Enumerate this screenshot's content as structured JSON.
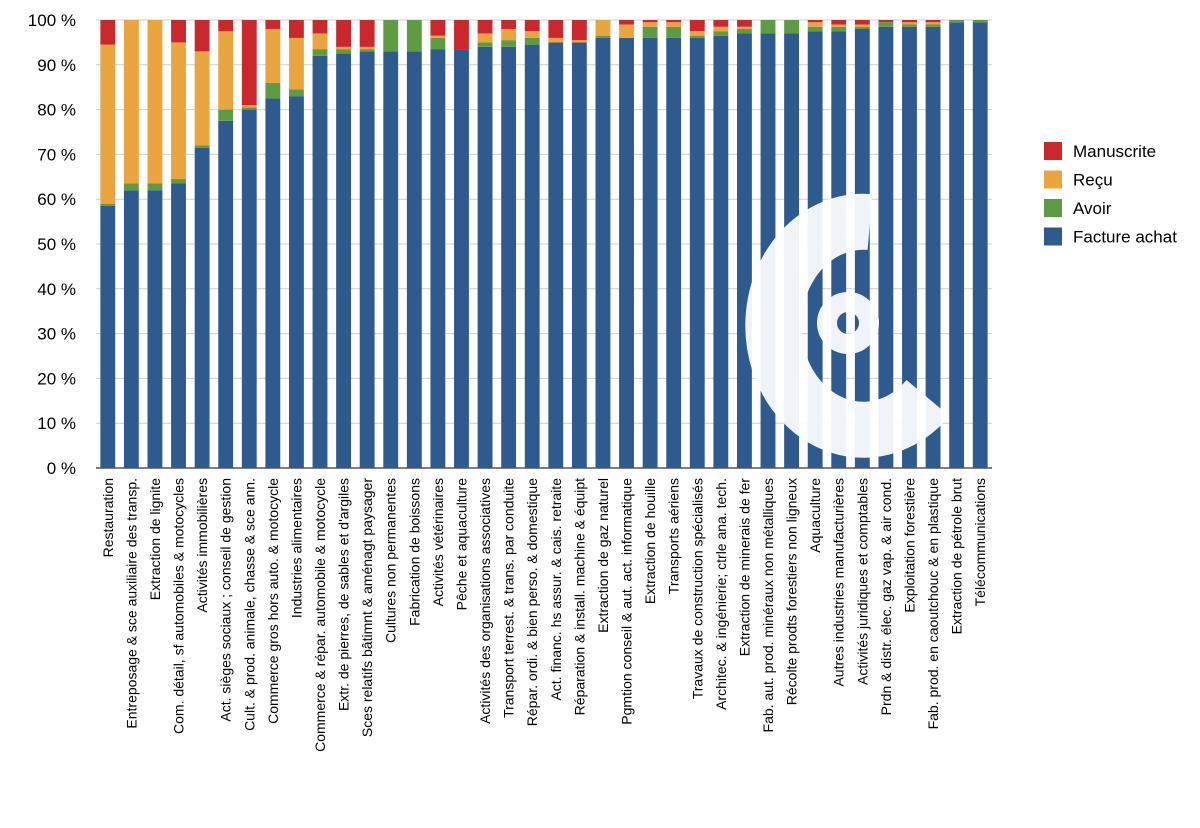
{
  "chart_data": {
    "type": "bar",
    "stacked": true,
    "ylim": [
      0,
      100
    ],
    "y_ticks": [
      "0 %",
      "10 %",
      "20 %",
      "30 %",
      "40 %",
      "50 %",
      "60 %",
      "70 %",
      "80 %",
      "90 %",
      "100 %"
    ],
    "grid": true,
    "legend_position": "right",
    "watermark_logo": "C",
    "categories": [
      "Restauration",
      "Entreposage & sce auxiliaire des transp.",
      "Extraction de lignite",
      "Com. détail, sf automobiles & motocycles",
      "Activités immobilières",
      "Act. sièges sociaux ; conseil de gestion",
      "Cult. & prod. animale, chasse & sce ann.",
      "Commerce gros hors auto. & motocycle",
      "Industries alimentaires",
      "Commerce & répar. automobile & motocycle",
      "Extr. de pierres, de sables et d'argiles",
      "Sces relatifs bâtimnt & aménagt paysager",
      "Cultures non permanentes",
      "Fabrication de boissons",
      "Activités vétérinaires",
      "Pêche et aquaculture",
      "Activités des organisations associatives",
      "Transport terrest. & trans. par conduite",
      "Répar. ordi. & bien perso. & domestique",
      "Act. financ. hs assur. & cais. retraite",
      "Réparation & install. machine & équipt",
      "Extraction de gaz naturel",
      "Pgmtion conseil & aut. act. informatique",
      "Extraction de houille",
      "Transports aériens",
      "Travaux de construction spécialisés",
      "Architec. & ingénierie; ctrle ana. tech.",
      "Extraction de minerais de fer",
      "Fab. aut. prod. minéraux non métalliques",
      "Récolte prodts forestiers non ligneux",
      "Aquaculture",
      "Autres industries manufacturières",
      "Activités juridiques et comptables",
      "Prdn & distr. élec. gaz vap. & air cond.",
      "Exploitation forestière",
      "Fab. prod. en caoutchouc & en plastique",
      "Extraction de pétrole brut",
      "Télécommunications"
    ],
    "series": [
      {
        "name": "Facture achat",
        "color": "#2e5a8e",
        "values": [
          58.5,
          62,
          62,
          63.5,
          71.5,
          77.5,
          80,
          82.5,
          83,
          92,
          92.5,
          93,
          93,
          93,
          93.5,
          93.5,
          94,
          94,
          94.5,
          95,
          95,
          96,
          96,
          96,
          96,
          96,
          96.5,
          97,
          97,
          97,
          97.5,
          97.5,
          98,
          98.5,
          98.5,
          98.5,
          99.5,
          99.5
        ]
      },
      {
        "name": "Avoir",
        "color": "#5e9b44",
        "values": [
          0.5,
          1.5,
          1.5,
          1,
          0.5,
          2.5,
          0.5,
          3.5,
          1.5,
          1.5,
          1,
          0.5,
          7,
          7,
          2.5,
          0,
          1,
          1.5,
          1.5,
          0,
          0,
          0.5,
          0,
          2.5,
          2.5,
          0.5,
          1,
          1,
          3,
          3,
          1,
          1,
          0.5,
          1,
          0.5,
          0.5,
          0.5,
          0.5
        ]
      },
      {
        "name": "Reçu",
        "color": "#e9a53f",
        "values": [
          35.5,
          36.5,
          36.5,
          30.5,
          21,
          17.5,
          0.5,
          12,
          11.5,
          3.5,
          0.5,
          0.5,
          0,
          0,
          0.5,
          0,
          2,
          2.5,
          1.5,
          1,
          0.5,
          3.5,
          3,
          1,
          1,
          1,
          1,
          0.5,
          0,
          0,
          1,
          0.5,
          0.5,
          0,
          0.5,
          0.5,
          0,
          0
        ]
      },
      {
        "name": "Manuscrite",
        "color": "#c9292c",
        "values": [
          5.5,
          0,
          0,
          5,
          7,
          2.5,
          19,
          2,
          4,
          3,
          6,
          6,
          0,
          0,
          3.5,
          6.5,
          3,
          2,
          2.5,
          4,
          4.5,
          0,
          1,
          0.5,
          0.5,
          2.5,
          1.5,
          1.5,
          0,
          0,
          0.5,
          1,
          1,
          0.5,
          0.5,
          0.5,
          0,
          0
        ]
      }
    ],
    "legend_order": [
      "Manuscrite",
      "Reçu",
      "Avoir",
      "Facture achat"
    ]
  }
}
